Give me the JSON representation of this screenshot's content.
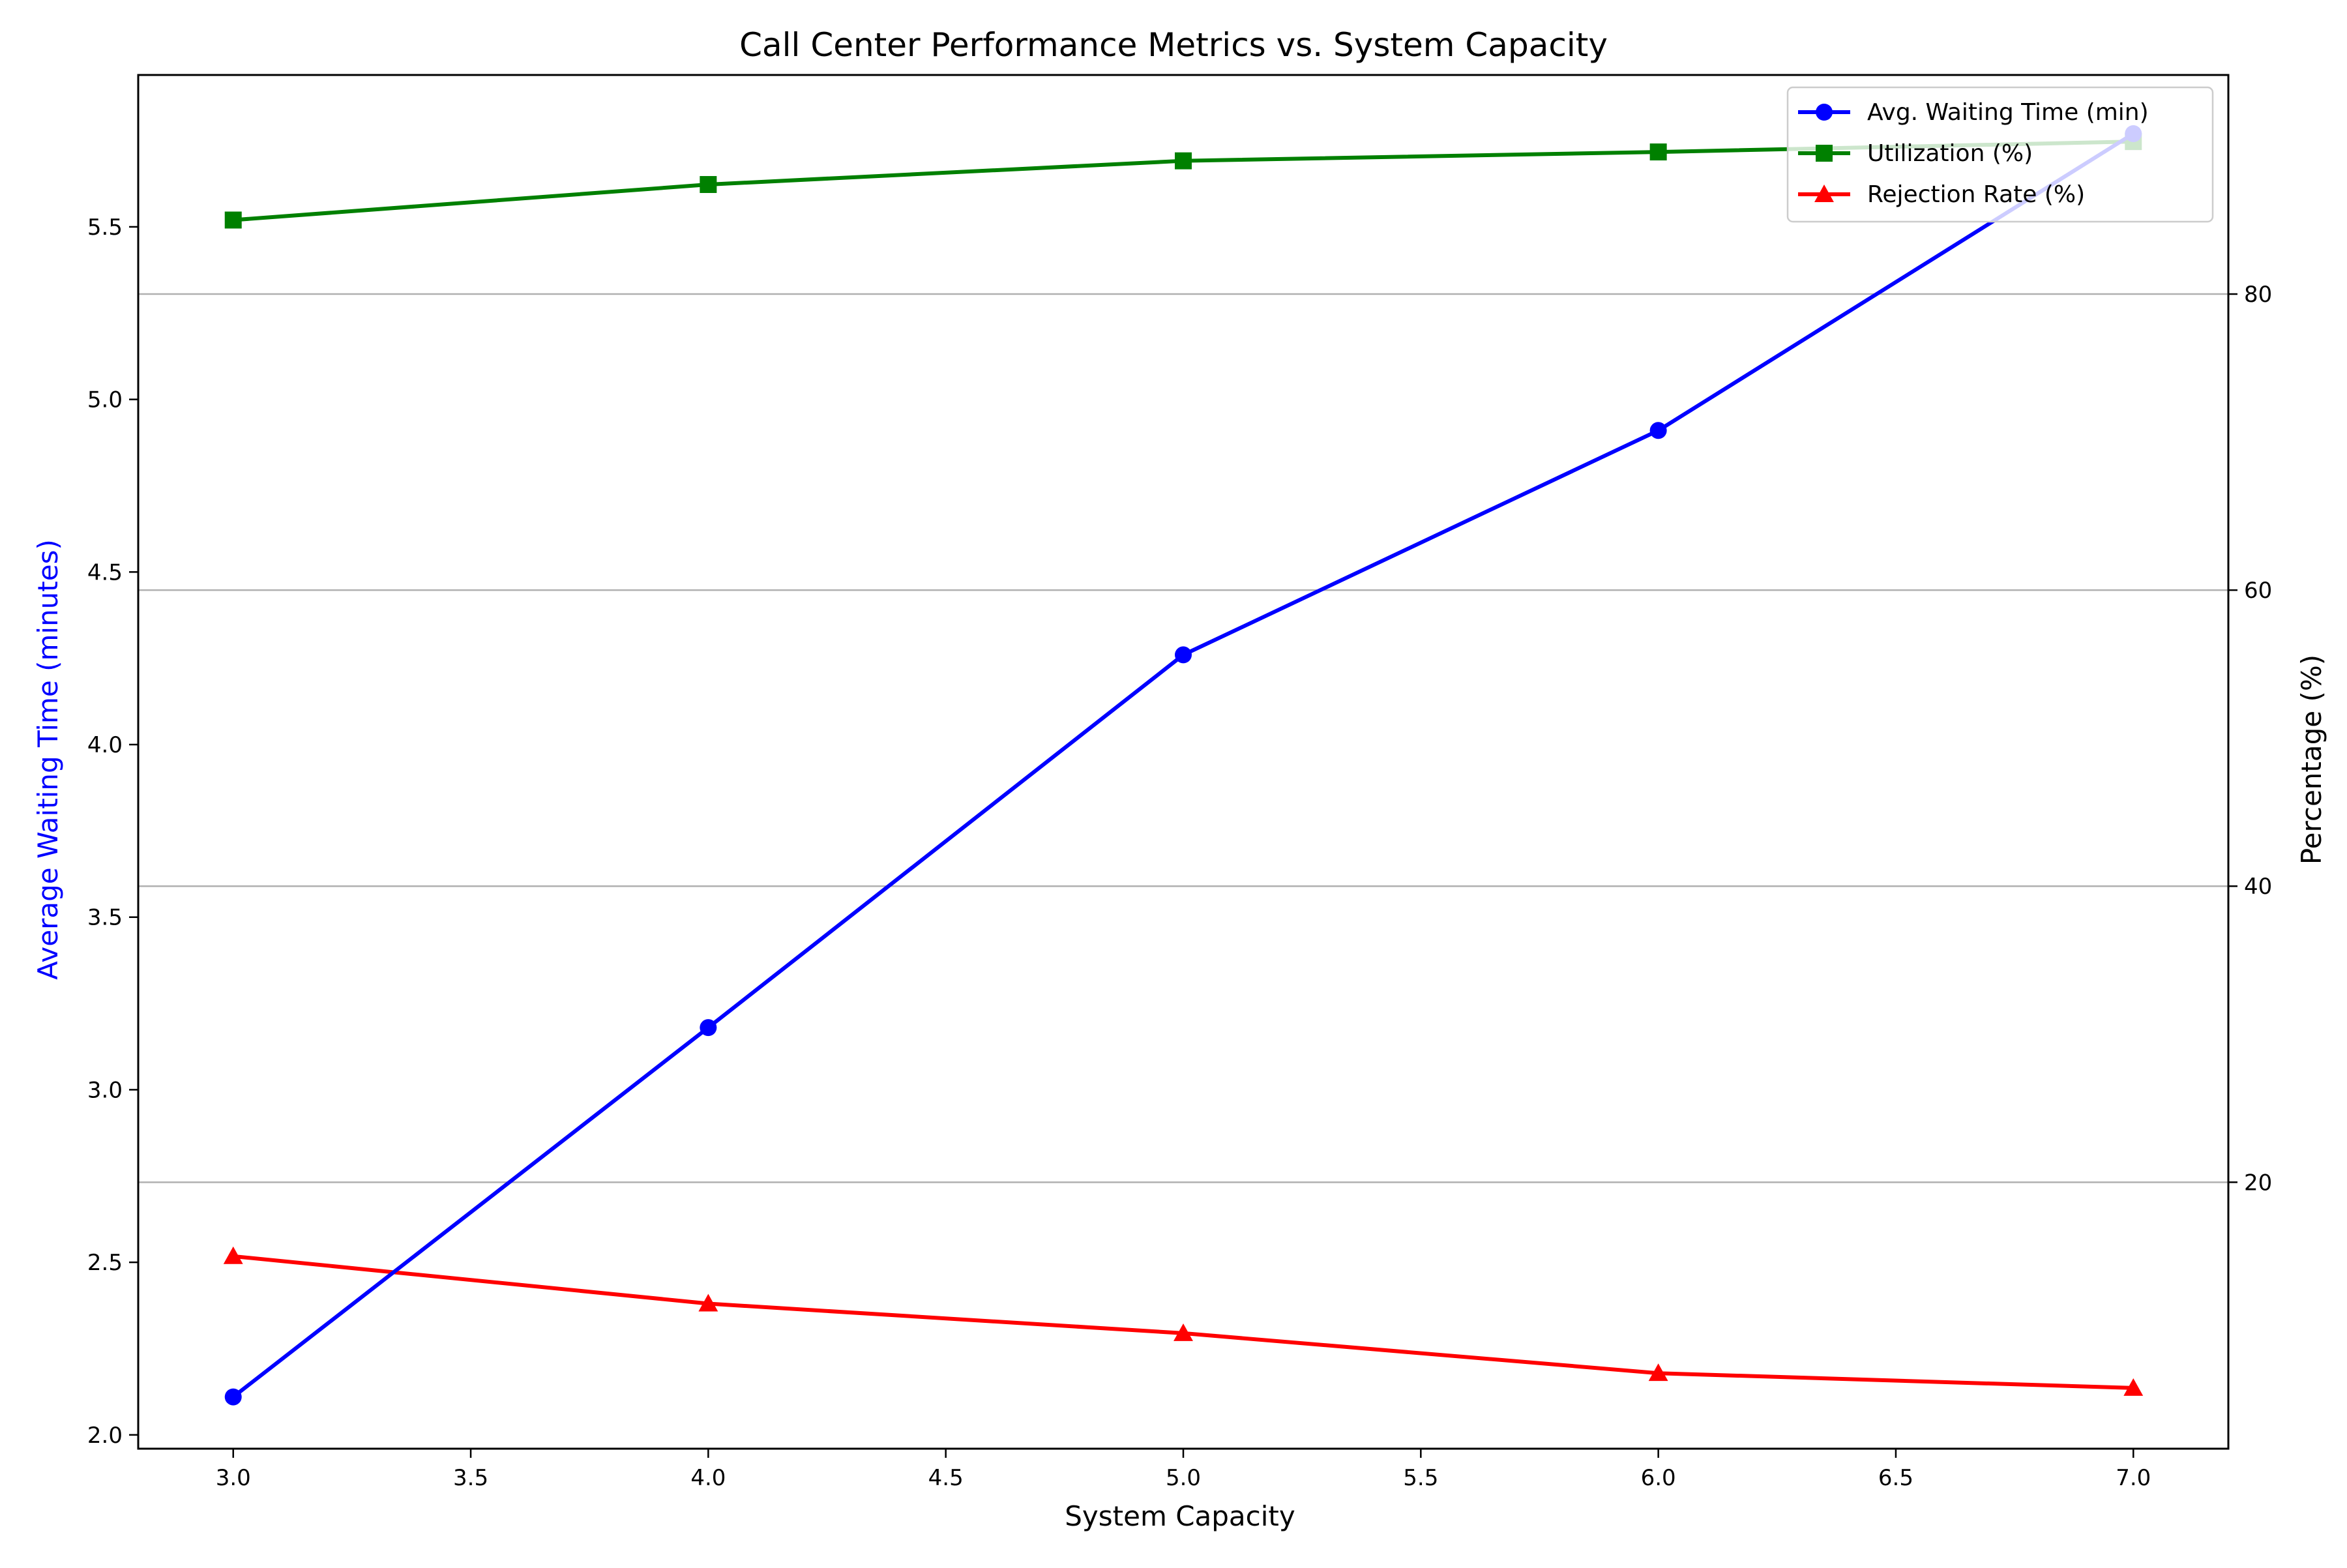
{
  "chart_data": {
    "type": "line",
    "title": "Call Center Performance Metrics vs. System Capacity",
    "xlabel": "System Capacity",
    "ylabel_left": "Average Waiting Time (minutes)",
    "ylabel_right": "Percentage (%)",
    "x": [
      3,
      4,
      5,
      6,
      7
    ],
    "xlim": [
      2.8,
      7.2
    ],
    "ylim_left": [
      1.96,
      5.94
    ],
    "ylim_right": [
      2.0,
      94.8
    ],
    "x_ticks": [
      "3.0",
      "3.5",
      "4.0",
      "4.5",
      "5.0",
      "5.5",
      "6.0",
      "6.5",
      "7.0"
    ],
    "y_left_ticks": [
      "2.0",
      "2.5",
      "3.0",
      "3.5",
      "4.0",
      "4.5",
      "5.0",
      "5.5"
    ],
    "y_right_ticks": [
      "20",
      "40",
      "60",
      "80"
    ],
    "grid": "horizontal lines at right-axis ticks",
    "legend_placement": "upper right",
    "series": [
      {
        "name": "Avg. Waiting Time (min)",
        "axis": "left",
        "values": [
          2.11,
          3.18,
          4.26,
          4.91,
          5.77
        ],
        "color": "#0000ff",
        "marker": "circle"
      },
      {
        "name": "Utilization (%)",
        "axis": "right",
        "values": [
          85.0,
          87.4,
          89.0,
          89.6,
          90.3
        ],
        "color": "#008000",
        "marker": "square"
      },
      {
        "name": "Rejection Rate (%)",
        "axis": "right",
        "values": [
          15.0,
          11.8,
          9.8,
          7.1,
          6.1
        ],
        "color": "#ff0000",
        "marker": "triangle"
      }
    ]
  }
}
